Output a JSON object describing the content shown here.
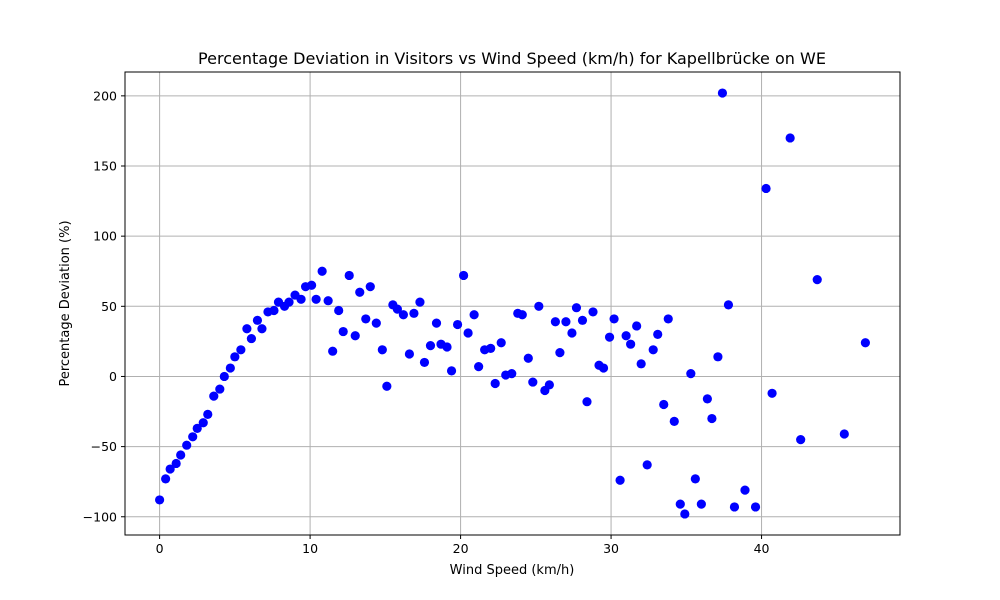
{
  "chart_data": {
    "type": "scatter",
    "title": "Percentage Deviation in Visitors vs Wind Speed (km/h) for Kapellbrücke on WE",
    "xlabel": "Wind Speed (km/h)",
    "ylabel": "Percentage Deviation (%)",
    "xlim": [
      -2.3,
      49.2
    ],
    "ylim": [
      -113,
      217
    ],
    "xticks": [
      0,
      10,
      20,
      30,
      40
    ],
    "yticks": [
      -100,
      -50,
      0,
      50,
      100,
      150,
      200
    ],
    "xtick_labels": [
      "0",
      "10",
      "20",
      "30",
      "40"
    ],
    "ytick_labels": [
      "−100",
      "−50",
      "0",
      "50",
      "100",
      "150",
      "200"
    ],
    "grid": true,
    "marker_color": "#0000ff",
    "points": [
      [
        0.0,
        -88
      ],
      [
        0.4,
        -73
      ],
      [
        0.7,
        -66
      ],
      [
        1.1,
        -62
      ],
      [
        1.4,
        -56
      ],
      [
        1.8,
        -49
      ],
      [
        2.2,
        -43
      ],
      [
        2.5,
        -37
      ],
      [
        2.9,
        -33
      ],
      [
        3.2,
        -27
      ],
      [
        3.6,
        -14
      ],
      [
        4.0,
        -9
      ],
      [
        4.3,
        0
      ],
      [
        4.7,
        6
      ],
      [
        5.0,
        14
      ],
      [
        5.4,
        19
      ],
      [
        5.8,
        34
      ],
      [
        6.1,
        27
      ],
      [
        6.5,
        40
      ],
      [
        6.8,
        34
      ],
      [
        7.2,
        46
      ],
      [
        7.6,
        47
      ],
      [
        7.9,
        53
      ],
      [
        8.3,
        50
      ],
      [
        8.6,
        53
      ],
      [
        9.0,
        58
      ],
      [
        9.4,
        55
      ],
      [
        9.7,
        64
      ],
      [
        10.1,
        65
      ],
      [
        10.4,
        55
      ],
      [
        10.8,
        75
      ],
      [
        11.2,
        54
      ],
      [
        11.5,
        18
      ],
      [
        11.9,
        47
      ],
      [
        12.2,
        32
      ],
      [
        12.6,
        72
      ],
      [
        13.0,
        29
      ],
      [
        13.3,
        60
      ],
      [
        13.7,
        41
      ],
      [
        14.0,
        64
      ],
      [
        14.4,
        38
      ],
      [
        14.8,
        19
      ],
      [
        15.1,
        -7
      ],
      [
        15.5,
        51
      ],
      [
        15.8,
        48
      ],
      [
        16.2,
        44
      ],
      [
        16.6,
        16
      ],
      [
        16.9,
        45
      ],
      [
        17.3,
        53
      ],
      [
        17.6,
        10
      ],
      [
        18.0,
        22
      ],
      [
        18.4,
        38
      ],
      [
        18.7,
        23
      ],
      [
        19.1,
        21
      ],
      [
        19.4,
        4
      ],
      [
        19.8,
        37
      ],
      [
        20.2,
        72
      ],
      [
        20.5,
        31
      ],
      [
        20.9,
        44
      ],
      [
        21.2,
        7
      ],
      [
        21.6,
        19
      ],
      [
        22.0,
        20
      ],
      [
        22.3,
        -5
      ],
      [
        22.7,
        24
      ],
      [
        23.0,
        1
      ],
      [
        23.4,
        2
      ],
      [
        23.8,
        45
      ],
      [
        24.1,
        44
      ],
      [
        24.5,
        13
      ],
      [
        24.8,
        -4
      ],
      [
        25.2,
        50
      ],
      [
        25.6,
        -10
      ],
      [
        25.9,
        -6
      ],
      [
        26.3,
        39
      ],
      [
        26.6,
        17
      ],
      [
        27.0,
        39
      ],
      [
        27.4,
        31
      ],
      [
        27.7,
        49
      ],
      [
        28.1,
        40
      ],
      [
        28.4,
        -18
      ],
      [
        28.8,
        46
      ],
      [
        29.2,
        8
      ],
      [
        29.5,
        6
      ],
      [
        29.9,
        28
      ],
      [
        30.2,
        41
      ],
      [
        30.6,
        -74
      ],
      [
        31.0,
        29
      ],
      [
        31.3,
        23
      ],
      [
        31.7,
        36
      ],
      [
        32.0,
        9
      ],
      [
        32.4,
        -63
      ],
      [
        32.8,
        19
      ],
      [
        33.1,
        30
      ],
      [
        33.5,
        -20
      ],
      [
        33.8,
        41
      ],
      [
        34.2,
        -32
      ],
      [
        34.6,
        -91
      ],
      [
        34.9,
        -98
      ],
      [
        35.3,
        2
      ],
      [
        35.6,
        -73
      ],
      [
        36.0,
        -91
      ],
      [
        36.4,
        -16
      ],
      [
        36.7,
        -30
      ],
      [
        37.1,
        14
      ],
      [
        37.4,
        202
      ],
      [
        37.8,
        51
      ],
      [
        38.2,
        -93
      ],
      [
        38.9,
        -81
      ],
      [
        39.6,
        -93
      ],
      [
        40.3,
        134
      ],
      [
        40.7,
        -12
      ],
      [
        41.9,
        170
      ],
      [
        42.6,
        -45
      ],
      [
        43.7,
        69
      ],
      [
        45.5,
        -41
      ],
      [
        46.9,
        24
      ]
    ]
  }
}
